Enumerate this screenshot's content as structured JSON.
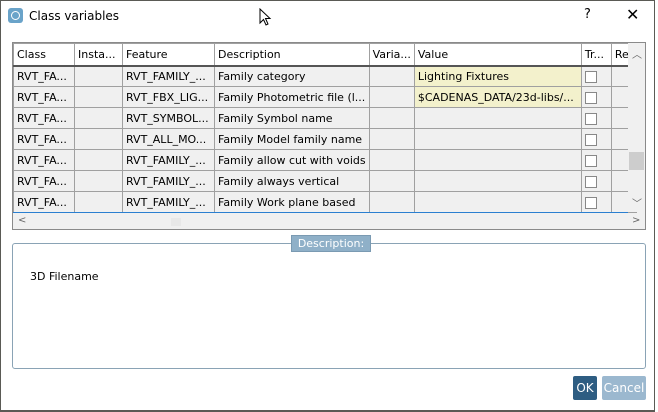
{
  "window": {
    "title": "Class variables",
    "help_label": "?",
    "close_label": "✕"
  },
  "table": {
    "columns": [
      "Class",
      "Insta...",
      "Feature",
      "Description",
      "Varia...",
      "Value",
      "Tr...",
      "Ref"
    ],
    "rows": [
      {
        "class": "RVT_FA...",
        "instance": "",
        "feature": "RVT_FAMILY_...",
        "description": "Family category",
        "variable": "",
        "value": "Lighting Fixtures",
        "tr": false
      },
      {
        "class": "RVT_FA...",
        "instance": "",
        "feature": "RVT_FBX_LIG...",
        "description": "Family Photometric file (l...",
        "variable": "",
        "value": "$CADENAS_DATA/23d-libs/...",
        "tr": false
      },
      {
        "class": "RVT_FA...",
        "instance": "",
        "feature": "RVT_SYMBOL...",
        "description": "Family Symbol name",
        "variable": "",
        "value": "",
        "tr": false
      },
      {
        "class": "RVT_FA...",
        "instance": "",
        "feature": "RVT_ALL_MO...",
        "description": "Family Model family name",
        "variable": "",
        "value": "",
        "tr": false
      },
      {
        "class": "RVT_FA...",
        "instance": "",
        "feature": "RVT_FAMILY_...",
        "description": "Family allow cut with voids",
        "variable": "",
        "value": "",
        "tr": false
      },
      {
        "class": "RVT_FA...",
        "instance": "",
        "feature": "RVT_FAMILY_...",
        "description": "Family always vertical",
        "variable": "",
        "value": "",
        "tr": false
      },
      {
        "class": "RVT_FA...",
        "instance": "",
        "feature": "RVT_FAMILY_...",
        "description": "Family Work plane based",
        "variable": "",
        "value": "",
        "tr": false
      }
    ]
  },
  "description": {
    "label": "Description:",
    "text": "3D Filename"
  },
  "buttons": {
    "ok": "OK",
    "cancel": "Cancel"
  },
  "colors": {
    "accent": "#2e5d82",
    "value_highlight": "#f3f1cc",
    "group_label": "#8fb0c8"
  }
}
